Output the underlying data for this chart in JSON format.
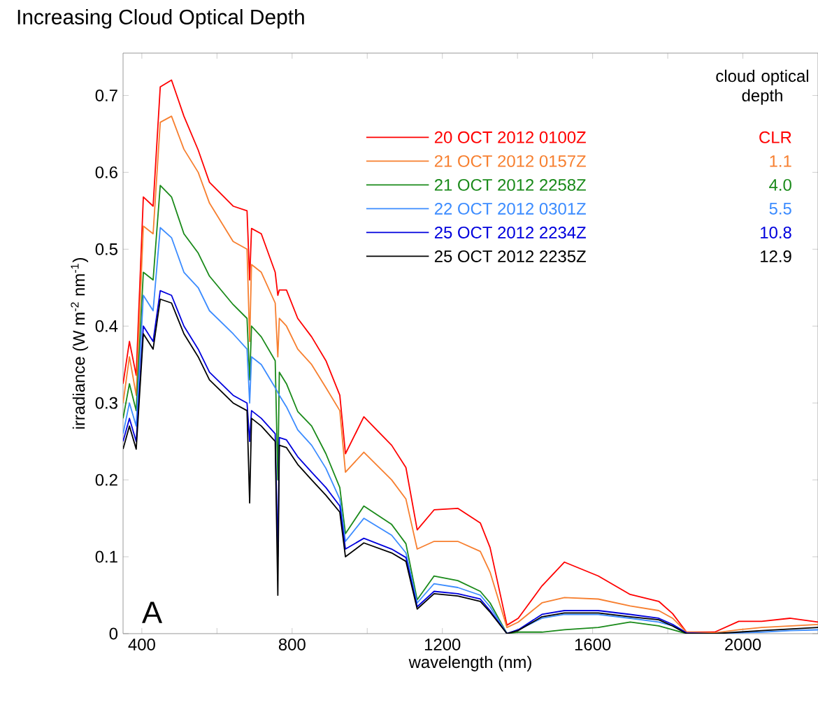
{
  "chart_data": {
    "type": "line",
    "title": "Increasing Cloud Optical Depth",
    "xlabel": "wavelength (nm)",
    "ylabel": "irradiance (W m$^{-2}$ nm$^{-1}$)",
    "legend_title": "cloud optical depth",
    "x": [
      350,
      367,
      385,
      404,
      430,
      449,
      479,
      512,
      550,
      580,
      643,
      680,
      687,
      692,
      718,
      755,
      762,
      766,
      785,
      815,
      852,
      890,
      927,
      942,
      991,
      1065,
      1103,
      1133,
      1178,
      1241,
      1301,
      1327,
      1372,
      1402,
      1465,
      1525,
      1615,
      1700,
      1776,
      1813,
      1850,
      1925,
      1989,
      2050,
      2125,
      2200
    ],
    "series": [
      {
        "name": "20 OCT 2012 0100Z",
        "color": "#ff0000",
        "values": [
          0.325,
          0.38,
          0.336,
          0.568,
          0.556,
          0.711,
          0.72,
          0.673,
          0.629,
          0.587,
          0.556,
          0.55,
          0.46,
          0.527,
          0.52,
          0.47,
          0.44,
          0.447,
          0.447,
          0.41,
          0.386,
          0.355,
          0.31,
          0.234,
          0.282,
          0.245,
          0.216,
          0.135,
          0.161,
          0.163,
          0.144,
          0.112,
          0.011,
          0.02,
          0.062,
          0.093,
          0.075,
          0.051,
          0.042,
          0.026,
          0.002,
          0.002,
          0.016,
          0.016,
          0.02,
          0.015
        ]
      },
      {
        "name": "21 OCT 2012 0157Z",
        "color": "#f77f2f",
        "values": [
          0.3,
          0.36,
          0.31,
          0.53,
          0.52,
          0.665,
          0.673,
          0.63,
          0.6,
          0.56,
          0.51,
          0.5,
          0.38,
          0.48,
          0.47,
          0.43,
          0.36,
          0.41,
          0.4,
          0.37,
          0.35,
          0.32,
          0.29,
          0.21,
          0.236,
          0.2,
          0.175,
          0.11,
          0.12,
          0.12,
          0.107,
          0.08,
          0.008,
          0.015,
          0.04,
          0.047,
          0.045,
          0.036,
          0.03,
          0.02,
          0.002,
          0.001,
          0.005,
          0.008,
          0.01,
          0.012
        ]
      },
      {
        "name": "21 OCT 2012 2258Z",
        "color": "#1a8a1a",
        "values": [
          0.28,
          0.325,
          0.29,
          0.47,
          0.46,
          0.583,
          0.568,
          0.52,
          0.495,
          0.465,
          0.428,
          0.41,
          0.33,
          0.4,
          0.386,
          0.355,
          0.2,
          0.34,
          0.325,
          0.289,
          0.27,
          0.234,
          0.19,
          0.13,
          0.166,
          0.142,
          0.117,
          0.044,
          0.075,
          0.069,
          0.055,
          0.04,
          0.0,
          0.002,
          0.002,
          0.005,
          0.008,
          0.015,
          0.01,
          0.005,
          0.0,
          0.0,
          null,
          null,
          null,
          null
        ]
      },
      {
        "name": "22 OCT 2012 0301Z",
        "color": "#3c8cff",
        "values": [
          0.26,
          0.3,
          0.27,
          0.44,
          0.42,
          0.528,
          0.515,
          0.47,
          0.45,
          0.42,
          0.39,
          0.37,
          0.3,
          0.36,
          0.35,
          0.32,
          null,
          0.31,
          0.295,
          0.265,
          0.245,
          0.215,
          0.175,
          0.12,
          0.15,
          0.128,
          0.105,
          0.04,
          0.065,
          0.06,
          0.05,
          0.035,
          0.0,
          0.005,
          0.02,
          0.025,
          0.025,
          0.02,
          0.015,
          0.01,
          0.0,
          0.0,
          0.001,
          0.002,
          0.004,
          0.005
        ]
      },
      {
        "name": "25 OCT 2012 2234Z",
        "color": "#0000dd",
        "values": [
          0.25,
          0.28,
          0.25,
          0.4,
          0.38,
          0.446,
          0.44,
          0.4,
          0.37,
          0.34,
          0.31,
          0.3,
          0.25,
          0.29,
          0.28,
          0.26,
          0.1,
          0.255,
          0.252,
          0.23,
          0.21,
          0.19,
          0.166,
          0.11,
          0.124,
          0.11,
          0.099,
          0.035,
          0.055,
          0.052,
          0.045,
          0.03,
          0.0,
          0.005,
          0.025,
          0.03,
          0.03,
          0.025,
          0.02,
          0.012,
          0.001,
          0.0,
          null,
          null,
          null,
          null
        ]
      },
      {
        "name": "25 OCT 2012 2235Z",
        "color": "#000000",
        "values": [
          0.24,
          0.27,
          0.24,
          0.39,
          0.37,
          0.435,
          0.43,
          0.39,
          0.36,
          0.33,
          0.3,
          0.29,
          0.17,
          0.28,
          0.27,
          0.25,
          0.05,
          0.245,
          0.242,
          0.22,
          0.2,
          0.18,
          0.158,
          0.1,
          0.118,
          0.105,
          0.094,
          0.032,
          0.052,
          0.049,
          0.042,
          0.028,
          0.0,
          0.004,
          0.022,
          0.027,
          0.027,
          0.022,
          0.018,
          0.01,
          0.0,
          0.0,
          0.002,
          0.004,
          0.006,
          0.008
        ]
      }
    ],
    "annotations": [
      "CLR",
      "1.1",
      "4.0",
      "5.5",
      "10.8",
      "12.9",
      "A"
    ],
    "xlim": [
      350,
      2200
    ],
    "ylim": [
      0,
      0.755
    ],
    "xticks": [
      400,
      {
        "value": 600,
        "label": null
      },
      800,
      {
        "value": 1000,
        "label": null
      },
      1200,
      {
        "value": 1400,
        "label": null
      },
      1600,
      {
        "value": 1800,
        "label": null
      },
      2000
    ],
    "yticks": [
      0,
      0.1,
      0.2,
      0.3,
      0.4,
      0.5,
      0.6,
      0.7
    ],
    "grid": false,
    "legend": "top right",
    "marker": "none",
    "line_style": "solid"
  }
}
